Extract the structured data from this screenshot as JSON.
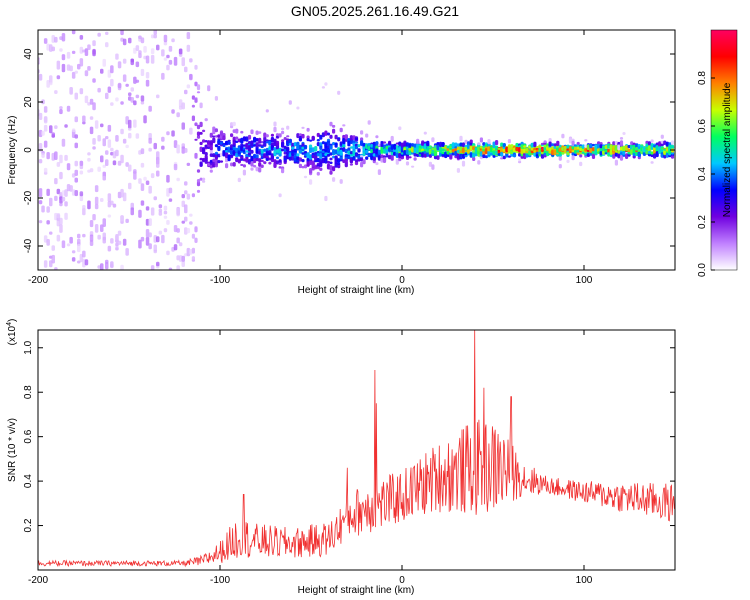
{
  "title": "GN05.2025.261.16.49.G21",
  "chart_data": [
    {
      "type": "heatmap",
      "name": "spectrogram",
      "xlabel": "Height of straight line (km)",
      "ylabel": "Frequency (Hz)",
      "xlim": [
        -200,
        150
      ],
      "ylim": [
        -50,
        50
      ],
      "x_ticks": [
        -200,
        -100,
        0,
        100
      ],
      "x_tick_labels": [
        "-200",
        "-100",
        "0",
        "100"
      ],
      "y_ticks": [
        -40,
        -20,
        0,
        20,
        40
      ],
      "y_tick_labels": [
        "-40",
        "-20",
        "0",
        "20",
        "40"
      ],
      "colorbar": {
        "label": "Normalized spectral amplitude",
        "range": [
          0,
          1
        ],
        "ticks": [
          0,
          0.2,
          0.4,
          0.6,
          0.8
        ],
        "tick_labels": [
          "0.0",
          "0.2",
          "0.4",
          "0.6",
          "0.8"
        ],
        "colors": [
          "#ffffff",
          "#c080ff",
          "#7000e0",
          "#0000ff",
          "#00c8ff",
          "#00ff60",
          "#c8ff00",
          "#ff8000",
          "#ff0000",
          "#ff0060"
        ]
      },
      "band_profile": [
        {
          "x": -200,
          "half_width_hz": 50,
          "peak_amplitude": 0.15
        },
        {
          "x": -115,
          "half_width_hz": 50,
          "peak_amplitude": 0.15
        },
        {
          "x": -110,
          "half_width_hz": 12,
          "peak_amplitude": 0.3
        },
        {
          "x": -100,
          "half_width_hz": 8,
          "peak_amplitude": 0.4
        },
        {
          "x": -60,
          "half_width_hz": 7,
          "peak_amplitude": 0.45
        },
        {
          "x": -40,
          "half_width_hz": 10,
          "peak_amplitude": 0.45
        },
        {
          "x": -20,
          "half_width_hz": 5,
          "peak_amplitude": 0.5
        },
        {
          "x": 0,
          "half_width_hz": 3,
          "peak_amplitude": 0.6
        },
        {
          "x": 50,
          "half_width_hz": 3,
          "peak_amplitude": 0.85
        },
        {
          "x": 100,
          "half_width_hz": 2,
          "peak_amplitude": 0.9
        },
        {
          "x": 150,
          "half_width_hz": 3,
          "peak_amplitude": 0.7
        }
      ]
    },
    {
      "type": "line",
      "name": "snr",
      "xlabel": "Height of straight line (km)",
      "ylabel": "SNR (10 * v/v)",
      "y_multiplier": "(x10",
      "y_multiplier_exp": "4",
      "y_multiplier_close": ")",
      "xlim": [
        -200,
        150
      ],
      "ylim": [
        0,
        1.08
      ],
      "x_ticks": [
        -200,
        -100,
        0,
        100
      ],
      "x_tick_labels": [
        "-200",
        "-100",
        "0",
        "100"
      ],
      "y_ticks": [
        0.2,
        0.4,
        0.6,
        0.8,
        1.0
      ],
      "y_tick_labels": [
        "0.2",
        "0.4",
        "0.6",
        "0.8",
        "1.0"
      ],
      "color": "#f03030",
      "envelope": {
        "x": [
          -200,
          -120,
          -110,
          -100,
          -90,
          -80,
          -60,
          -40,
          -30,
          -20,
          -10,
          0,
          20,
          40,
          55,
          65,
          80,
          100,
          120,
          150
        ],
        "mean": [
          0.03,
          0.03,
          0.04,
          0.08,
          0.15,
          0.13,
          0.12,
          0.14,
          0.24,
          0.28,
          0.3,
          0.33,
          0.42,
          0.46,
          0.46,
          0.42,
          0.38,
          0.35,
          0.33,
          0.3
        ],
        "spread": [
          0.012,
          0.012,
          0.025,
          0.05,
          0.1,
          0.08,
          0.07,
          0.08,
          0.1,
          0.12,
          0.12,
          0.12,
          0.16,
          0.22,
          0.2,
          0.09,
          0.04,
          0.05,
          0.07,
          0.09
        ]
      },
      "spikes": [
        {
          "x": -87,
          "y": 0.34
        },
        {
          "x": -30,
          "y": 0.46
        },
        {
          "x": -15,
          "y": 0.9
        },
        {
          "x": -14,
          "y": 0.75
        },
        {
          "x": 40,
          "y": 1.08
        },
        {
          "x": 45,
          "y": 0.82
        },
        {
          "x": 60,
          "y": 0.78
        }
      ]
    }
  ]
}
